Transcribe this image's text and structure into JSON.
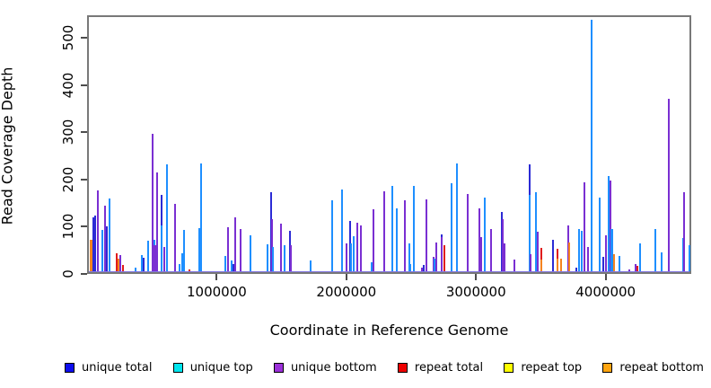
{
  "chart_data": {
    "type": "bar",
    "title": "",
    "xlabel": "Coordinate in Reference Genome",
    "ylabel": "Read Coverage Depth",
    "xlim": [
      0,
      4660000
    ],
    "ylim": [
      0,
      548
    ],
    "grid": false,
    "legend_position": "bottom",
    "x_ticks": [
      {
        "value": 1000000,
        "label": "1000000"
      },
      {
        "value": 2000000,
        "label": "2000000"
      },
      {
        "value": 3000000,
        "label": "3000000"
      },
      {
        "value": 4000000,
        "label": "4000000"
      }
    ],
    "y_ticks": [
      {
        "value": 0,
        "label": "0"
      },
      {
        "value": 100,
        "label": "100"
      },
      {
        "value": 200,
        "label": "200"
      },
      {
        "value": 300,
        "label": "300"
      },
      {
        "value": 400,
        "label": "400"
      },
      {
        "value": 500,
        "label": "500"
      }
    ],
    "series_legend": [
      {
        "key": "U",
        "label": "unique total",
        "swatch_color": "#0d0dee",
        "bar_color": "#2b2bd5"
      },
      {
        "key": "T",
        "label": "unique top",
        "swatch_color": "#00e5ee",
        "bar_color": "#1e8fff"
      },
      {
        "key": "B",
        "label": "unique bottom",
        "swatch_color": "#9b30d9",
        "bar_color": "#7a2fd2"
      },
      {
        "key": "R",
        "label": "repeat total",
        "swatch_color": "#ee0000",
        "bar_color": "#e01c1c"
      },
      {
        "key": "Y",
        "label": "repeat top",
        "swatch_color": "#ffff00",
        "bar_color": "#f5e11f"
      },
      {
        "key": "O",
        "label": "repeat bottom",
        "swatch_color": "#ffa510",
        "bar_color": "#f5831f"
      }
    ],
    "bars": [
      [
        15000,
        70,
        "O",
        3
      ],
      [
        32000,
        119,
        "U"
      ],
      [
        48000,
        121,
        "U"
      ],
      [
        72000,
        176,
        "B"
      ],
      [
        105000,
        92,
        "T"
      ],
      [
        122000,
        142,
        "B"
      ],
      [
        140000,
        99,
        "U"
      ],
      [
        158000,
        158,
        "T"
      ],
      [
        215000,
        42,
        "R"
      ],
      [
        228000,
        30,
        "O"
      ],
      [
        245000,
        38,
        "B"
      ],
      [
        262000,
        18,
        "R"
      ],
      [
        360000,
        12,
        "T"
      ],
      [
        405000,
        38,
        "T"
      ],
      [
        425000,
        33,
        "U"
      ],
      [
        455000,
        68,
        "T"
      ],
      [
        490000,
        295,
        "B"
      ],
      [
        505000,
        70,
        "T"
      ],
      [
        512000,
        60,
        "B",
        3
      ],
      [
        528000,
        213,
        "B"
      ],
      [
        558000,
        166,
        "U"
      ],
      [
        563000,
        100,
        "T"
      ],
      [
        578000,
        55,
        "B"
      ],
      [
        605000,
        231,
        "T"
      ],
      [
        662000,
        147,
        "B"
      ],
      [
        700000,
        20,
        "T"
      ],
      [
        722000,
        42,
        "T"
      ],
      [
        736000,
        91,
        "T"
      ],
      [
        775000,
        8,
        "R"
      ],
      [
        855000,
        95,
        "T",
        3
      ],
      [
        862000,
        232,
        "T"
      ],
      [
        1050000,
        36,
        "T"
      ],
      [
        1070000,
        97,
        "B"
      ],
      [
        1098000,
        27,
        "T"
      ],
      [
        1112000,
        20,
        "U"
      ],
      [
        1130000,
        118,
        "B"
      ],
      [
        1170000,
        93,
        "B"
      ],
      [
        1248000,
        80,
        "T"
      ],
      [
        1380000,
        61,
        "T"
      ],
      [
        1405000,
        171,
        "U"
      ],
      [
        1410000,
        115,
        "B"
      ],
      [
        1418000,
        55,
        "T"
      ],
      [
        1482000,
        105,
        "B"
      ],
      [
        1512000,
        59,
        "T"
      ],
      [
        1552000,
        89,
        "U"
      ],
      [
        1556000,
        60,
        "B"
      ],
      [
        1710000,
        27,
        "T"
      ],
      [
        1875000,
        154,
        "T"
      ],
      [
        1952000,
        177,
        "T"
      ],
      [
        1990000,
        63,
        "B"
      ],
      [
        2015000,
        110,
        "U"
      ],
      [
        2022000,
        63,
        "T"
      ],
      [
        2042000,
        78,
        "T"
      ],
      [
        2070000,
        106,
        "B"
      ],
      [
        2100000,
        100,
        "B"
      ],
      [
        2180000,
        23,
        "T"
      ],
      [
        2195000,
        135,
        "B"
      ],
      [
        2280000,
        173,
        "B"
      ],
      [
        2340000,
        184,
        "T"
      ],
      [
        2372000,
        137,
        "T"
      ],
      [
        2440000,
        154,
        "B"
      ],
      [
        2470000,
        63,
        "T"
      ],
      [
        2480000,
        20,
        "T"
      ],
      [
        2508000,
        185,
        "T"
      ],
      [
        2572000,
        12,
        "B"
      ],
      [
        2580000,
        18,
        "U"
      ],
      [
        2602000,
        156,
        "B"
      ],
      [
        2660000,
        35,
        "B"
      ],
      [
        2668000,
        30,
        "T"
      ],
      [
        2676000,
        65,
        "B"
      ],
      [
        2718000,
        82,
        "U"
      ],
      [
        2722000,
        76,
        "B"
      ],
      [
        2740000,
        60,
        "R"
      ],
      [
        2800000,
        190,
        "T"
      ],
      [
        2840000,
        233,
        "T"
      ],
      [
        2920000,
        167,
        "B"
      ],
      [
        3012000,
        138,
        "B"
      ],
      [
        3018000,
        76,
        "B",
        4
      ],
      [
        3050000,
        160,
        "T"
      ],
      [
        3100000,
        93,
        "B"
      ],
      [
        3185000,
        130,
        "U"
      ],
      [
        3190000,
        115,
        "B"
      ],
      [
        3196000,
        63,
        "B",
        4
      ],
      [
        3280000,
        28,
        "B"
      ],
      [
        3398000,
        230,
        "U"
      ],
      [
        3402000,
        165,
        "T"
      ],
      [
        3406000,
        40,
        "B"
      ],
      [
        3448000,
        171,
        "T"
      ],
      [
        3460000,
        88,
        "B"
      ],
      [
        3488000,
        54,
        "R"
      ],
      [
        3492000,
        28,
        "O"
      ],
      [
        3580000,
        70,
        "U"
      ],
      [
        3612000,
        51,
        "R"
      ],
      [
        3616000,
        30,
        "O"
      ],
      [
        3640000,
        30,
        "O"
      ],
      [
        3695000,
        99,
        "R"
      ],
      [
        3700000,
        100,
        "B"
      ],
      [
        3705000,
        65,
        "O"
      ],
      [
        3760000,
        12,
        "U"
      ],
      [
        3782000,
        94,
        "T"
      ],
      [
        3800000,
        90,
        "T"
      ],
      [
        3822000,
        192,
        "B"
      ],
      [
        3850000,
        56,
        "B"
      ],
      [
        3880000,
        537,
        "T"
      ],
      [
        3940000,
        160,
        "T"
      ],
      [
        3968000,
        35,
        "U"
      ],
      [
        3990000,
        80,
        "B"
      ],
      [
        4010000,
        206,
        "T"
      ],
      [
        4022000,
        196,
        "B"
      ],
      [
        4035000,
        94,
        "T",
        3
      ],
      [
        4048000,
        40,
        "O"
      ],
      [
        4090000,
        36,
        "T"
      ],
      [
        4170000,
        8,
        "B"
      ],
      [
        4218000,
        20,
        "B"
      ],
      [
        4228000,
        15,
        "R"
      ],
      [
        4250000,
        63,
        "T"
      ],
      [
        4370000,
        94,
        "T"
      ],
      [
        4420000,
        44,
        "T"
      ],
      [
        4470000,
        370,
        "B"
      ],
      [
        4584000,
        75,
        "T",
        3
      ],
      [
        4590000,
        171,
        "B"
      ],
      [
        4630000,
        59,
        "T"
      ]
    ],
    "colors": {
      "axis_box": "#787878",
      "tick": "#4d4d4d",
      "baseline": "#8377e0",
      "background": "#ffffff",
      "text": "#000000"
    }
  }
}
